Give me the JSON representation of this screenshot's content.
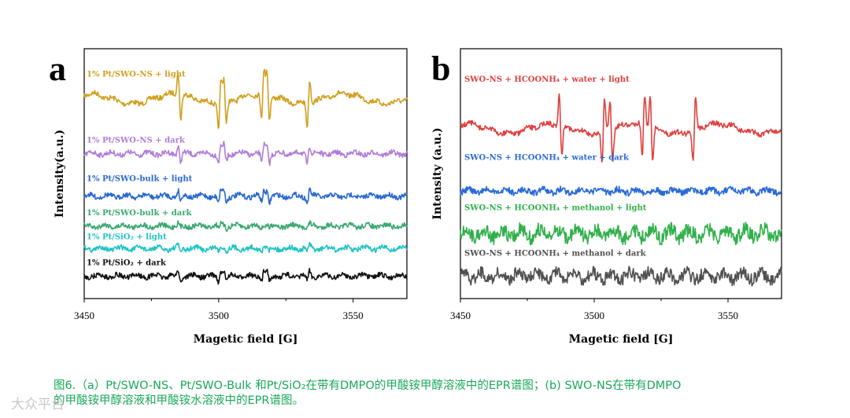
{
  "chart_data": [
    {
      "type": "line",
      "panel": "a",
      "xlabel": "Magetic field [G]",
      "ylabel": "Intensity(a.u.)",
      "xlim": [
        3450,
        3570
      ],
      "xticks": [
        "3450",
        "3500",
        "3550"
      ],
      "peaks_G": [
        3485,
        3500,
        3502,
        3516,
        3518,
        3533
      ],
      "series": [
        {
          "name": "1% Pt/SWO-NS + light",
          "color": "#d0a020",
          "baseline": 0.8,
          "amplitude": 1.0
        },
        {
          "name": "1% Pt/SWO-NS + dark",
          "color": "#b07cd8",
          "baseline": 0.58,
          "amplitude": 0.35
        },
        {
          "name": "1% Pt/SWO-bulk + light",
          "color": "#2868d0",
          "baseline": 0.41,
          "amplitude": 0.25
        },
        {
          "name": "1% Pt/SWO-bulk + dark",
          "color": "#3aa870",
          "baseline": 0.29,
          "amplitude": 0.08
        },
        {
          "name": "1% Pt/SiO₂ + light",
          "color": "#20c4c4",
          "baseline": 0.2,
          "amplitude": 0.12
        },
        {
          "name": "1% Pt/SiO₂ + dark",
          "color": "#111111",
          "baseline": 0.09,
          "amplitude": 0.22
        }
      ]
    },
    {
      "type": "line",
      "panel": "b",
      "xlabel": "Magetic field [G]",
      "ylabel": "Intensity (a.u.)",
      "xlim": [
        3450,
        3570
      ],
      "xticks": [
        "3450",
        "3500",
        "3550"
      ],
      "peaks_G": [
        3487,
        3503,
        3506,
        3518,
        3521,
        3537
      ],
      "series": [
        {
          "name": "SWO-NS + HCOONH₄ + water + light",
          "color": "#e04040",
          "baseline": 0.68,
          "amplitude": 1.0
        },
        {
          "name": "SWO-NS + HCOONH₄ + water + dark",
          "color": "#2a6ad8",
          "baseline": 0.43,
          "amplitude": 0.0
        },
        {
          "name": "SWO-NS + HCOONH₄ + methanol + light",
          "color": "#30b04a",
          "baseline": 0.26,
          "amplitude": 0.0
        },
        {
          "name": "SWO-NS + HCOONH₄ + methanol + dark",
          "color": "#505050",
          "baseline": 0.09,
          "amplitude": 0.0
        }
      ]
    }
  ],
  "caption": {
    "line1": "图6.（a）Pt/SWO-NS、Pt/SWO-Bulk 和Pt/SiO₂在带有DMPO的甲酸铵甲醇溶液中的EPR谱图；(b) SWO-NS在带有DMPO",
    "line2": "的甲酸铵甲醇溶液和甲酸铵水溶液中的EPR谱图。"
  },
  "watermark": "大众平台"
}
